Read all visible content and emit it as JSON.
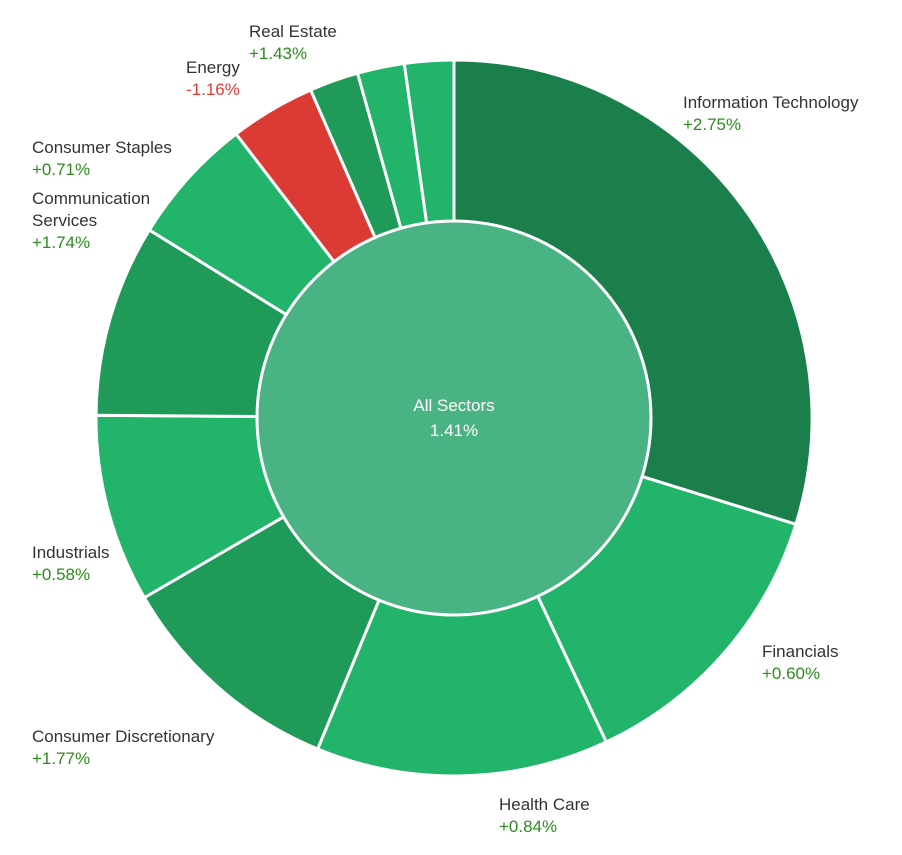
{
  "chart_data": {
    "type": "pie",
    "variant": "donut",
    "center_label": {
      "name": "All Sectors",
      "value": "1.41%"
    },
    "colors": {
      "positive_strong": "#1a7f4b",
      "positive_medium": "#1f9a58",
      "positive_light": "#22b46a",
      "negative": "#dc3a35",
      "center": "#4ab383",
      "value_positive": "#2e8b1f",
      "value_negative": "#e53935"
    },
    "sectors": [
      {
        "name": "Information Technology",
        "change": "+2.75%",
        "weight": 30.9,
        "color": "#1a7f4b"
      },
      {
        "name": "Financials",
        "change": "+0.60%",
        "weight": 13.7,
        "color": "#22b46a"
      },
      {
        "name": "Health Care",
        "change": "+0.84%",
        "weight": 13.7,
        "color": "#22b46a"
      },
      {
        "name": "Consumer Discretionary",
        "change": "+1.77%",
        "weight": 10.8,
        "color": "#1f9a58"
      },
      {
        "name": "Industrials",
        "change": "+0.58%",
        "weight": 8.8,
        "color": "#22b46a"
      },
      {
        "name": "",
        "change": "",
        "weight": 9.0,
        "color": "#1f9a58"
      },
      {
        "name": "",
        "change": "",
        "weight": 6.0,
        "color": "#22b46a"
      },
      {
        "name": "",
        "change": "",
        "weight": 4.0,
        "color": "#dc3a35"
      },
      {
        "name": "",
        "change": "",
        "weight": 2.3,
        "color": "#1f9a58"
      },
      {
        "name": "",
        "change": "",
        "weight": 2.2,
        "color": "#22b46a"
      },
      {
        "name": "",
        "change": "",
        "weight": 2.3,
        "color": "#22b46a"
      }
    ],
    "labels": [
      {
        "name": "Information Technology",
        "change": "+2.75%",
        "direction": "positive"
      },
      {
        "name": "Financials",
        "change": "+0.60%",
        "direction": "positive"
      },
      {
        "name": "Health Care",
        "change": "+0.84%",
        "direction": "positive"
      },
      {
        "name": "Consumer Discretionary",
        "change": "+1.77%",
        "direction": "positive"
      },
      {
        "name": "Industrials",
        "change": "+0.58%",
        "direction": "positive"
      },
      {
        "name": "Communication Services",
        "name_lines": [
          "Communication",
          "Services"
        ],
        "change": "+1.74%",
        "direction": "positive"
      },
      {
        "name": "Consumer Staples",
        "change": "+0.71%",
        "direction": "positive"
      },
      {
        "name": "Energy",
        "change": "-1.16%",
        "direction": "negative"
      },
      {
        "name": "Real Estate",
        "change": "+1.43%",
        "direction": "positive"
      }
    ]
  }
}
